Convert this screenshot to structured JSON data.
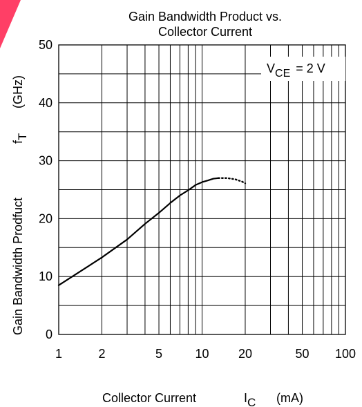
{
  "chart_data": {
    "type": "line",
    "title_line1": "Gain Bandwidth Product vs.",
    "title_line2": "Collector Current",
    "x_scale": "log",
    "xlim": [
      1,
      100
    ],
    "ylim": [
      0,
      50
    ],
    "grid": true,
    "x_ticks": [
      {
        "value": 1,
        "label": "1"
      },
      {
        "value": 2,
        "label": "2"
      },
      {
        "value": 5,
        "label": "5"
      },
      {
        "value": 10,
        "label": "10"
      },
      {
        "value": 20,
        "label": "20"
      },
      {
        "value": 50,
        "label": "50"
      },
      {
        "value": 100,
        "label": "100"
      }
    ],
    "y_ticks": [
      {
        "value": 0,
        "label": "0"
      },
      {
        "value": 10,
        "label": "10"
      },
      {
        "value": 20,
        "label": "20"
      },
      {
        "value": 30,
        "label": "30"
      },
      {
        "value": 40,
        "label": "40"
      },
      {
        "value": 50,
        "label": "50"
      }
    ],
    "xlabel": {
      "text": "Collector Current",
      "symbol": "I",
      "symbol_sub": "C",
      "unit": "(mA)"
    },
    "ylabel": {
      "text": "Gain Bandwidth Prodfuct",
      "symbol": "f",
      "symbol_sub": "T",
      "unit": "(GHz)"
    },
    "condition": {
      "symbol": "V",
      "sub": "CE",
      "text": "= 2 V"
    },
    "series": [
      {
        "style": "solid",
        "x": [
          1,
          1.5,
          2,
          3,
          4,
          5,
          6,
          7,
          8,
          9,
          10,
          11,
          12,
          13
        ],
        "y": [
          8.5,
          11.3,
          13.3,
          16.4,
          19.1,
          21.0,
          22.7,
          24.0,
          24.9,
          25.8,
          26.3,
          26.6,
          26.9,
          27.0
        ]
      },
      {
        "style": "dotted",
        "x": [
          13,
          15,
          17,
          19,
          20
        ],
        "y": [
          27.0,
          27.0,
          26.8,
          26.4,
          26.1
        ]
      }
    ]
  },
  "accent_color": "#ff2a55"
}
